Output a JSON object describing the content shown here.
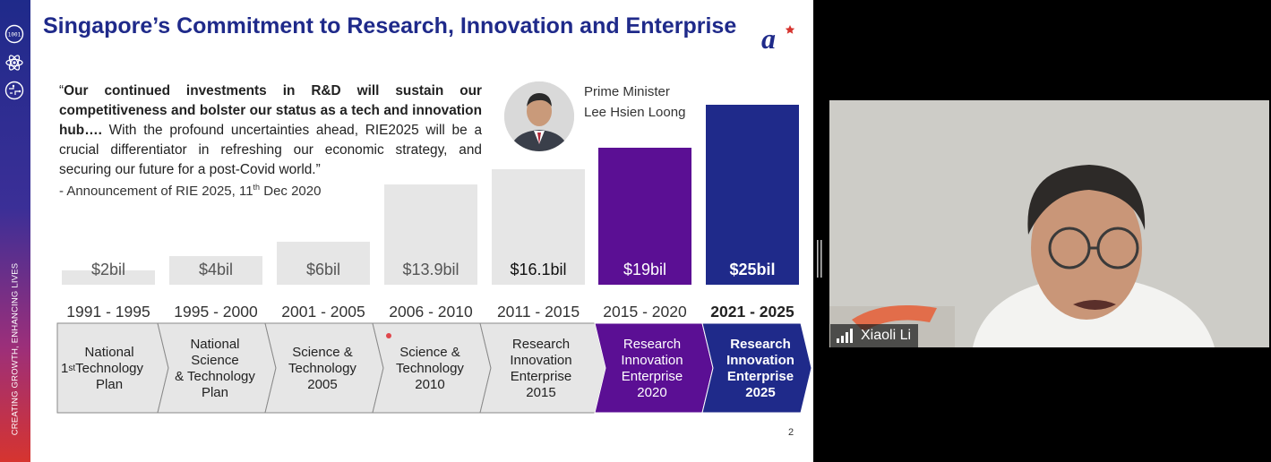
{
  "slide": {
    "title": "Singapore’s Commitment to Research, Innovation and Enterprise",
    "sidebar_tagline": "CREATING GROWTH, ENHANCING LIVES",
    "quote": {
      "open": "“",
      "bold": "Our continued investments in R&D will sustain our competitiveness and bolster our status as a tech and innovation hub….",
      "rest": " With the profound uncertainties ahead, RIE2025 will be a crucial differentiator in refreshing our economic strategy, and securing our future for a post-Covid world.”"
    },
    "attribution": {
      "prefix": "- Announcement of RIE 2025, 11",
      "sup": "th",
      "suffix": " Dec 2020"
    },
    "speaker": {
      "role": "Prime Minister",
      "name": "Lee Hsien Loong"
    },
    "page_number": "2",
    "colors": {
      "grey": "#e6e6e6",
      "purple": "#5b0f94",
      "navy": "#1f2a8a",
      "title": "#1f2a8a"
    }
  },
  "chart_data": {
    "type": "bar",
    "title": "",
    "unit": "S$ billion",
    "categories": [
      "1991 - 1995",
      "1995 - 2000",
      "2001 - 2005",
      "2006 - 2010",
      "2011 - 2015",
      "2015 - 2020",
      "2021 - 2025"
    ],
    "values": [
      2,
      4,
      6,
      13.9,
      16.1,
      19,
      25
    ],
    "labels": [
      "$2bil",
      "$4bil",
      "$6bil",
      "$13.9bil",
      "$16.1bil",
      "$19bil",
      "$25bil"
    ],
    "plans": [
      [
        "1st National",
        "Technology",
        "Plan"
      ],
      [
        "National",
        "Science",
        "& Technology",
        "Plan"
      ],
      [
        "Science &",
        "Technology",
        "2005"
      ],
      [
        "Science &",
        "Technology",
        "2010"
      ],
      [
        "Research",
        "Innovation",
        "Enterprise",
        "2015"
      ],
      [
        "Research",
        "Innovation",
        "Enterprise",
        "2020"
      ],
      [
        "Research",
        "Innovation",
        "Enterprise",
        "2025"
      ]
    ],
    "ylim": [
      0,
      25
    ]
  },
  "video": {
    "participant_name": "Xiaoli Li"
  }
}
